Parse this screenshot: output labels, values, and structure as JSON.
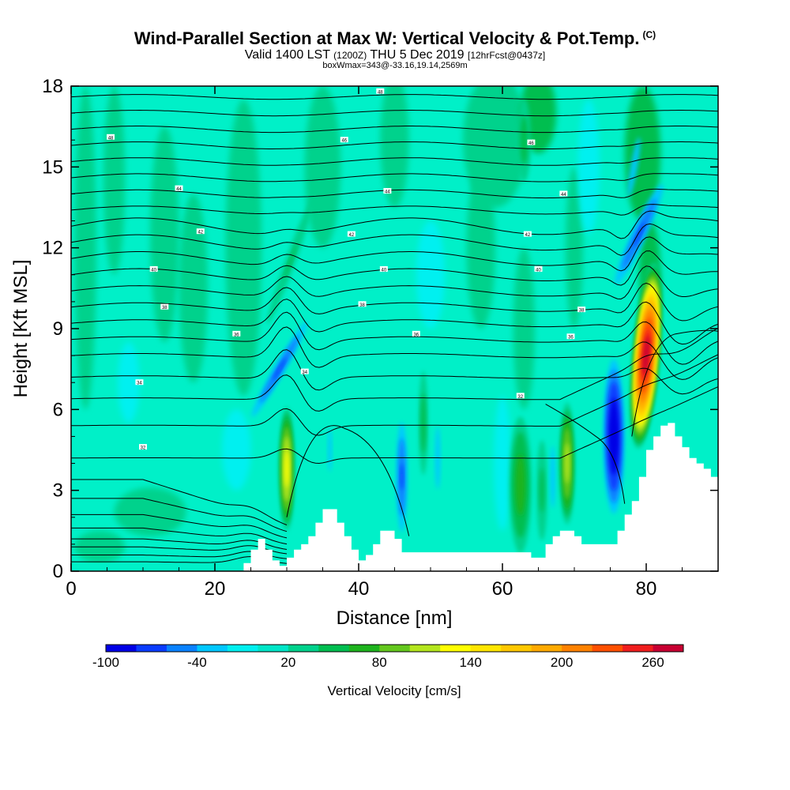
{
  "title": {
    "main": "Wind-Parallel Section at Max W: Vertical Velocity & Pot.Temp.",
    "copyright": "(C)",
    "valid_prefix": "Valid 1400 LST",
    "valid_utc": "(1200Z)",
    "valid_date": "THU 5 Dec 2019",
    "forecast": "[12hrFcst@0437z]",
    "boxwmax": "boxWmax=343@-33.16,19.14,2569m"
  },
  "chart_data": {
    "type": "heatmap",
    "title": "Wind-Parallel Section at Max W: Vertical Velocity & Pot.Temp.",
    "xlabel": "Distance [nm]",
    "ylabel": "Height [Kft MSL]",
    "xlim": [
      0,
      90
    ],
    "ylim": [
      0,
      18
    ],
    "xticks": [
      0,
      20,
      40,
      60,
      80
    ],
    "yticks": [
      0,
      3,
      6,
      9,
      12,
      15,
      18
    ],
    "max_w_cm_s": 343,
    "colorbar": {
      "label": "Vertical Velocity [cm/s]",
      "tick_labels": [
        "-100",
        "-40",
        "20",
        "80",
        "140",
        "200",
        "260"
      ],
      "tick_values": [
        -100,
        -40,
        20,
        80,
        140,
        200,
        260
      ],
      "levels": [
        -100,
        -80,
        -60,
        -40,
        -20,
        0,
        20,
        40,
        60,
        80,
        100,
        120,
        140,
        160,
        180,
        200,
        220,
        240,
        260,
        280
      ],
      "colors": [
        "#0000e6",
        "#0a3cff",
        "#0a82ff",
        "#00c8ff",
        "#00f0f0",
        "#00e6c8",
        "#00d28c",
        "#00be50",
        "#1eb41e",
        "#64c81e",
        "#b4e61e",
        "#ffff00",
        "#ffe600",
        "#ffc800",
        "#ffaa00",
        "#ff8200",
        "#ff5000",
        "#f01e1e",
        "#c80032"
      ]
    },
    "updrafts": [
      {
        "distance_nm": 30,
        "height_kft": 3.8,
        "w_cm_s": 130
      },
      {
        "distance_nm": 69,
        "height_kft": 4.0,
        "w_cm_s": 110
      },
      {
        "distance_nm": 80,
        "height_kft": 8.0,
        "w_cm_s": 260
      }
    ],
    "downdrafts": [
      {
        "distance_nm": 29,
        "height_kft": 7.5,
        "w_cm_s": -60
      },
      {
        "distance_nm": 46,
        "height_kft": 3.5,
        "w_cm_s": -60
      },
      {
        "distance_nm": 75.5,
        "height_kft": 5.0,
        "w_cm_s": -100
      },
      {
        "distance_nm": 79,
        "height_kft": 12.5,
        "w_cm_s": -60
      }
    ],
    "terrain_kft": {
      "x": [
        22,
        24,
        25,
        26,
        27,
        28,
        29,
        30,
        31,
        32,
        33,
        34,
        35,
        36,
        37,
        38,
        39,
        40,
        41,
        42,
        43,
        44,
        45,
        46,
        62,
        64,
        66,
        67,
        68,
        69,
        70,
        71,
        72,
        73,
        74,
        75,
        76,
        77,
        78,
        79,
        80,
        81,
        82,
        83,
        84,
        85,
        86,
        87,
        88,
        89,
        90
      ],
      "h": [
        0,
        0.3,
        0.8,
        1.2,
        0.8,
        0.4,
        0.2,
        0.5,
        0.8,
        1.0,
        1.3,
        1.8,
        2.3,
        2.3,
        1.8,
        1.3,
        0.8,
        0.4,
        0.6,
        1.0,
        1.5,
        1.5,
        1.2,
        0.7,
        0.7,
        0.5,
        1.0,
        1.3,
        1.5,
        1.5,
        1.3,
        1.0,
        1.0,
        1.0,
        1.0,
        1.0,
        1.5,
        2.1,
        2.6,
        3.5,
        4.5,
        5.0,
        5.4,
        5.5,
        5.0,
        4.6,
        4.2,
        4.0,
        3.8,
        3.5,
        3.3
      ]
    },
    "theta_contour_labels": [
      {
        "x": 5.5,
        "y": 16.1,
        "label": "48"
      },
      {
        "x": 38,
        "y": 16.0,
        "label": "46"
      },
      {
        "x": 64,
        "y": 15.9,
        "label": "46"
      },
      {
        "x": 43,
        "y": 17.8,
        "label": "48"
      },
      {
        "x": 15,
        "y": 14.2,
        "label": "44"
      },
      {
        "x": 44,
        "y": 14.1,
        "label": "44"
      },
      {
        "x": 68.5,
        "y": 14.0,
        "label": "44"
      },
      {
        "x": 18,
        "y": 12.6,
        "label": "42"
      },
      {
        "x": 39,
        "y": 12.5,
        "label": "42"
      },
      {
        "x": 63.5,
        "y": 12.5,
        "label": "42"
      },
      {
        "x": 11.5,
        "y": 11.2,
        "label": "40"
      },
      {
        "x": 43.5,
        "y": 11.2,
        "label": "40"
      },
      {
        "x": 65,
        "y": 11.2,
        "label": "40"
      },
      {
        "x": 13,
        "y": 9.8,
        "label": "38"
      },
      {
        "x": 40.5,
        "y": 9.9,
        "label": "38"
      },
      {
        "x": 71,
        "y": 9.7,
        "label": "38"
      },
      {
        "x": 23,
        "y": 8.8,
        "label": "36"
      },
      {
        "x": 48,
        "y": 8.8,
        "label": "36"
      },
      {
        "x": 69.5,
        "y": 8.7,
        "label": "36"
      },
      {
        "x": 9.5,
        "y": 7.0,
        "label": "34"
      },
      {
        "x": 32.5,
        "y": 7.4,
        "label": "34"
      },
      {
        "x": 62.5,
        "y": 6.5,
        "label": "32"
      },
      {
        "x": 10,
        "y": 4.6,
        "label": "32"
      }
    ]
  }
}
